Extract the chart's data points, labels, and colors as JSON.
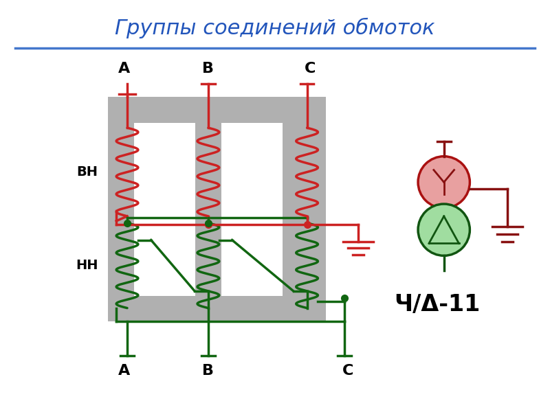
{
  "title": "Группы соединений обмоток",
  "title_color": "#2255bb",
  "title_fontsize": 22,
  "bg_color": "#ffffff",
  "sep_line_color": "#4477cc",
  "red": "#cc2222",
  "red_dark": "#881111",
  "green": "#116611",
  "green_dark": "#115511",
  "gray_core": "#b0b0b0",
  "label_BH": "ВН",
  "label_NN": "НН",
  "label_YD": "Ч/Δ-11"
}
